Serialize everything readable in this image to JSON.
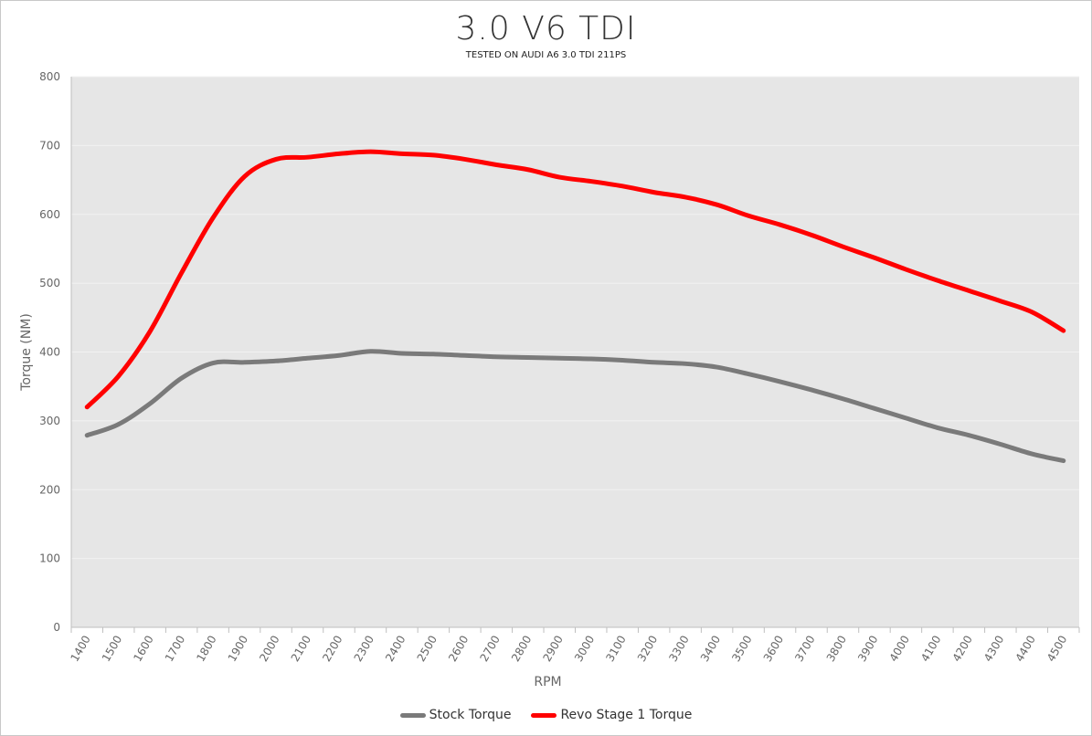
{
  "chart_data": {
    "type": "line",
    "title": "3.0 V6 TDI",
    "subtitle": "TESTED ON AUDI A6 3.0 TDI 211PS",
    "xlabel": "RPM",
    "ylabel": "Torque (NM)",
    "ylim": [
      0,
      800
    ],
    "yticks": [
      "0",
      "100",
      "200",
      "300",
      "400",
      "500",
      "600",
      "700",
      "800"
    ],
    "grid": true,
    "background": "#e6e6e6",
    "legend_position": "bottom",
    "x": [
      "1400",
      "1500",
      "1600",
      "1700",
      "1800",
      "1900",
      "2000",
      "2100",
      "2200",
      "2300",
      "2400",
      "2500",
      "2600",
      "2700",
      "2800",
      "2900",
      "3000",
      "3100",
      "3200",
      "3300",
      "3400",
      "3500",
      "3600",
      "3700",
      "3800",
      "3900",
      "4000",
      "4100",
      "4200",
      "4300",
      "4400",
      "4500"
    ],
    "series": [
      {
        "name": "Stock Torque",
        "color": "#7a7a7a",
        "values": [
          279,
          295,
          325,
          362,
          384,
          385,
          387,
          391,
          395,
          401,
          398,
          397,
          395,
          393,
          392,
          391,
          390,
          388,
          385,
          383,
          378,
          368,
          357,
          345,
          332,
          318,
          304,
          290,
          279,
          266,
          252,
          242
        ]
      },
      {
        "name": "Revo Stage 1 Torque",
        "color": "#ff0000",
        "values": [
          320,
          365,
          430,
          515,
          595,
          655,
          680,
          683,
          688,
          691,
          688,
          686,
          680,
          672,
          665,
          654,
          648,
          641,
          632,
          625,
          614,
          598,
          585,
          570,
          553,
          537,
          520,
          504,
          489,
          474,
          458,
          431
        ]
      }
    ]
  }
}
